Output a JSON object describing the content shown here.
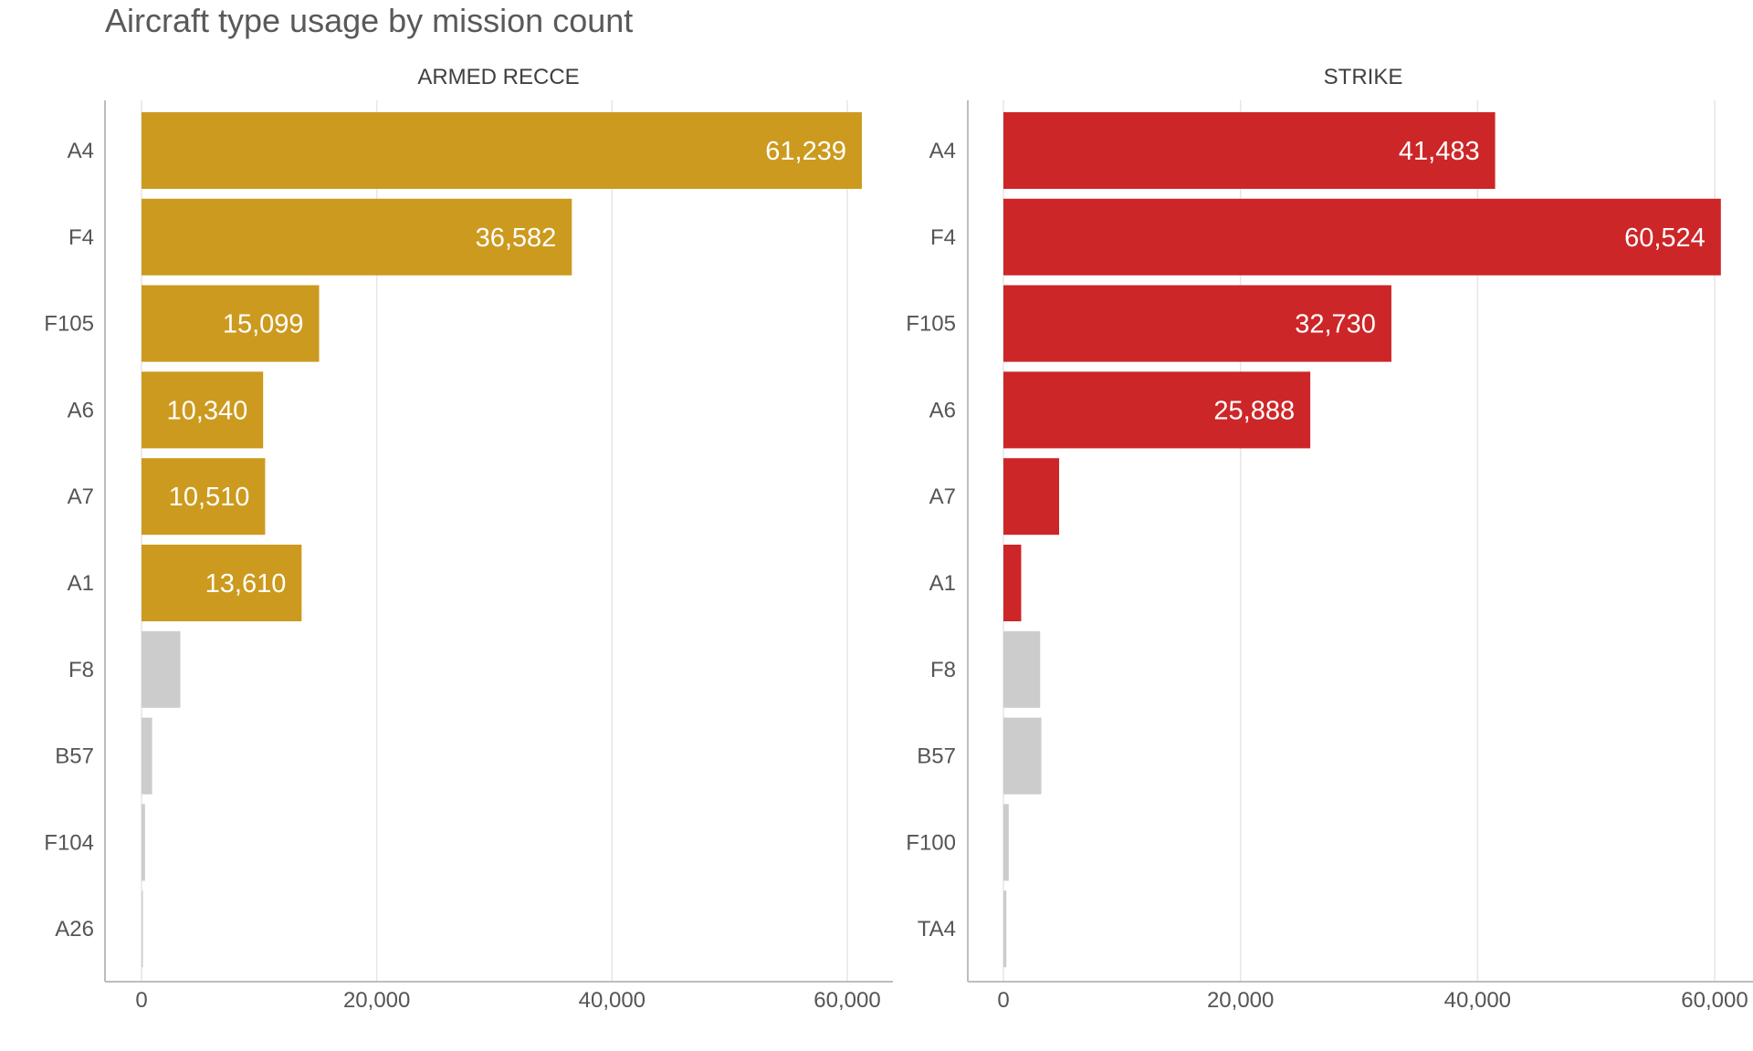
{
  "title": "Aircraft type usage by mission count",
  "chart_data": [
    {
      "type": "bar",
      "orientation": "horizontal",
      "panel_title": "ARMED RECCE",
      "categories": [
        "A4",
        "F4",
        "F105",
        "A6",
        "A7",
        "A1",
        "F8",
        "B57",
        "F104",
        "A26"
      ],
      "values": [
        61239,
        36582,
        15099,
        10340,
        10510,
        13610,
        3300,
        900,
        300,
        80
      ],
      "value_labels": [
        "61,239",
        "36,582",
        "15,099",
        "10,340",
        "10,510",
        "13,610",
        "",
        "",
        "",
        ""
      ],
      "highlighted": [
        true,
        true,
        true,
        true,
        true,
        true,
        false,
        false,
        false,
        false
      ],
      "highlight_color": "#CC9A1E",
      "muted_color": "#CCCCCC",
      "xlim": [
        0,
        64000
      ],
      "xticks": [
        0,
        20000,
        40000,
        60000
      ],
      "xtick_labels": [
        "0",
        "20,000",
        "40,000",
        "60,000"
      ],
      "grid": true
    },
    {
      "type": "bar",
      "orientation": "horizontal",
      "panel_title": "STRIKE",
      "categories": [
        "A4",
        "F4",
        "F105",
        "A6",
        "A7",
        "A1",
        "F8",
        "B57",
        "F100",
        "TA4"
      ],
      "values": [
        41483,
        60524,
        32730,
        25888,
        4700,
        1500,
        3100,
        3200,
        450,
        250
      ],
      "value_labels": [
        "41,483",
        "60,524",
        "32,730",
        "25,888",
        "",
        "",
        "",
        "",
        "",
        ""
      ],
      "highlighted": [
        true,
        true,
        true,
        true,
        true,
        true,
        false,
        false,
        false,
        false
      ],
      "highlight_color": "#CD2628",
      "muted_color": "#CCCCCC",
      "xlim": [
        0,
        64000
      ],
      "xticks": [
        0,
        20000,
        40000,
        60000
      ],
      "xtick_labels": [
        "0",
        "20,000",
        "40,000",
        "60,000"
      ],
      "grid": true
    }
  ]
}
